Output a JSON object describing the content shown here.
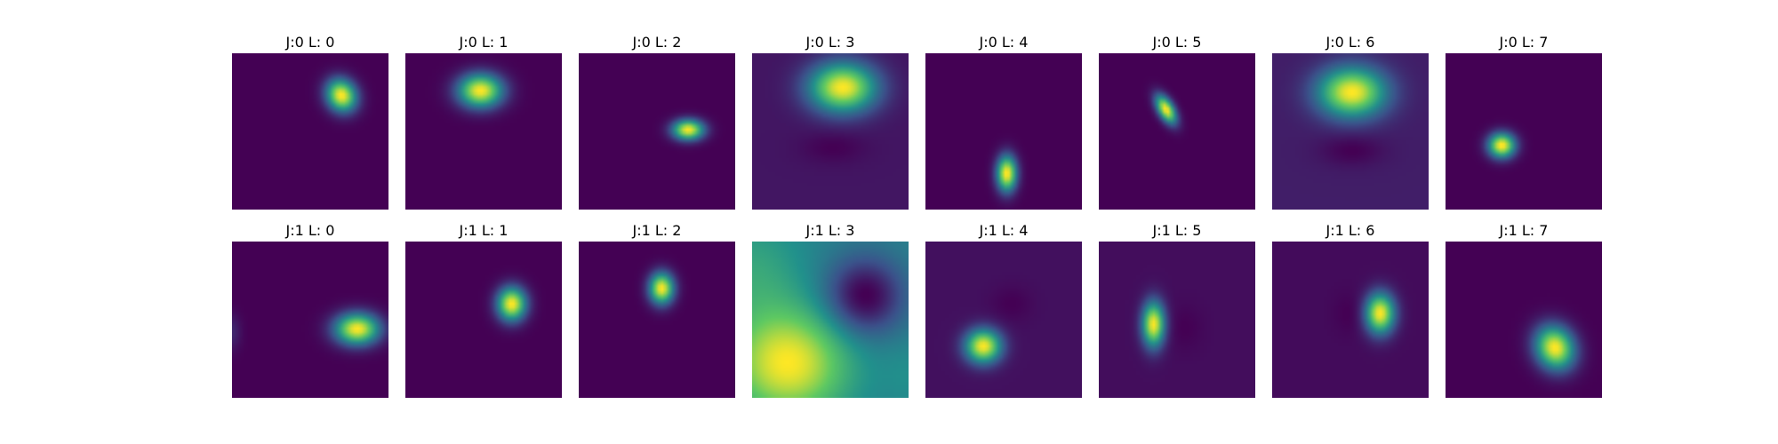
{
  "chart_data": {
    "type": "heatmap",
    "colormap": "viridis",
    "colormap_stops": [
      "#440154",
      "#3b528b",
      "#21918c",
      "#5ec962",
      "#fde725"
    ],
    "background": "#ffffff",
    "rows": 2,
    "cols": 8,
    "axes_visible": false,
    "panels": [
      {
        "title": "J:0 L: 0",
        "J": 0,
        "L": 0,
        "blobs": [
          {
            "cx": 0.7,
            "cy": 0.27,
            "sx": 0.065,
            "sy": 0.075,
            "rot": -30,
            "amp": 1.0
          }
        ],
        "base": 0.0
      },
      {
        "title": "J:0 L: 1",
        "J": 0,
        "L": 1,
        "blobs": [
          {
            "cx": 0.48,
            "cy": 0.24,
            "sx": 0.1,
            "sy": 0.075,
            "rot": 0,
            "amp": 1.0
          }
        ],
        "base": 0.0
      },
      {
        "title": "J:0 L: 2",
        "J": 0,
        "L": 2,
        "blobs": [
          {
            "cx": 0.7,
            "cy": 0.49,
            "sx": 0.07,
            "sy": 0.045,
            "rot": 0,
            "amp": 1.0
          }
        ],
        "base": 0.0
      },
      {
        "title": "J:0 L: 3",
        "J": 0,
        "L": 3,
        "blobs": [
          {
            "cx": 0.58,
            "cy": 0.22,
            "sx": 0.15,
            "sy": 0.11,
            "rot": 0,
            "amp": 1.0
          },
          {
            "cx": 0.52,
            "cy": 0.6,
            "sx": 0.14,
            "sy": 0.07,
            "rot": 0,
            "amp": -0.07
          }
        ],
        "base": 0.13
      },
      {
        "title": "J:0 L: 4",
        "J": 0,
        "L": 4,
        "blobs": [
          {
            "cx": 0.52,
            "cy": 0.77,
            "sx": 0.045,
            "sy": 0.08,
            "rot": 0,
            "amp": 1.0
          }
        ],
        "base": 0.0
      },
      {
        "title": "J:0 L: 5",
        "J": 0,
        "L": 5,
        "blobs": [
          {
            "cx": 0.43,
            "cy": 0.36,
            "sx": 0.035,
            "sy": 0.07,
            "rot": -30,
            "amp": 1.0
          }
        ],
        "base": 0.0
      },
      {
        "title": "J:0 L: 6",
        "J": 0,
        "L": 6,
        "blobs": [
          {
            "cx": 0.51,
            "cy": 0.25,
            "sx": 0.15,
            "sy": 0.11,
            "rot": 0,
            "amp": 1.0
          },
          {
            "cx": 0.51,
            "cy": 0.62,
            "sx": 0.14,
            "sy": 0.07,
            "rot": 0,
            "amp": -0.1
          }
        ],
        "base": 0.17
      },
      {
        "title": "J:0 L: 7",
        "J": 0,
        "L": 7,
        "blobs": [
          {
            "cx": 0.36,
            "cy": 0.59,
            "sx": 0.06,
            "sy": 0.055,
            "rot": 0,
            "amp": 1.0
          }
        ],
        "base": 0.0
      },
      {
        "title": "J:1 L: 0",
        "J": 1,
        "L": 0,
        "blobs": [
          {
            "cx": 0.8,
            "cy": 0.56,
            "sx": 0.1,
            "sy": 0.07,
            "rot": 0,
            "amp": 1.0
          },
          {
            "cx": 0.0,
            "cy": 0.58,
            "sx": 0.04,
            "sy": 0.08,
            "rot": 0,
            "amp": 0.12
          }
        ],
        "base": 0.03
      },
      {
        "title": "J:1 L: 1",
        "J": 1,
        "L": 1,
        "blobs": [
          {
            "cx": 0.68,
            "cy": 0.4,
            "sx": 0.065,
            "sy": 0.075,
            "rot": 0,
            "amp": 1.0
          }
        ],
        "base": 0.0
      },
      {
        "title": "J:1 L: 2",
        "J": 1,
        "L": 2,
        "blobs": [
          {
            "cx": 0.53,
            "cy": 0.3,
            "sx": 0.055,
            "sy": 0.07,
            "rot": 0,
            "amp": 1.0
          }
        ],
        "base": 0.0
      },
      {
        "title": "J:1 L: 3",
        "J": 1,
        "L": 3,
        "blobs": [
          {
            "cx": 0.23,
            "cy": 0.78,
            "sx": 0.26,
            "sy": 0.24,
            "rot": 0,
            "amp": 0.55
          },
          {
            "cx": 0.0,
            "cy": 0.2,
            "sx": 0.22,
            "sy": 0.25,
            "rot": 0,
            "amp": 0.15
          },
          {
            "cx": 0.72,
            "cy": 0.35,
            "sx": 0.17,
            "sy": 0.17,
            "rot": 0,
            "amp": -0.45
          },
          {
            "cx": 1.0,
            "cy": 0.85,
            "sx": 0.12,
            "sy": 0.15,
            "rot": 0,
            "amp": 0.05
          }
        ],
        "base": 0.45
      },
      {
        "title": "J:1 L: 4",
        "J": 1,
        "L": 4,
        "blobs": [
          {
            "cx": 0.37,
            "cy": 0.67,
            "sx": 0.08,
            "sy": 0.075,
            "rot": 0,
            "amp": 1.0
          },
          {
            "cx": 0.55,
            "cy": 0.4,
            "sx": 0.09,
            "sy": 0.08,
            "rot": 0,
            "amp": -0.05
          }
        ],
        "base": 0.05
      },
      {
        "title": "J:1 L: 5",
        "J": 1,
        "L": 5,
        "blobs": [
          {
            "cx": 0.35,
            "cy": 0.53,
            "sx": 0.05,
            "sy": 0.1,
            "rot": 0,
            "amp": 1.0
          },
          {
            "cx": 0.55,
            "cy": 0.55,
            "sx": 0.08,
            "sy": 0.1,
            "rot": 0,
            "amp": -0.04
          }
        ],
        "base": 0.05
      },
      {
        "title": "J:1 L: 6",
        "J": 1,
        "L": 6,
        "blobs": [
          {
            "cx": 0.69,
            "cy": 0.46,
            "sx": 0.065,
            "sy": 0.09,
            "rot": 0,
            "amp": 1.0
          },
          {
            "cx": 0.5,
            "cy": 0.46,
            "sx": 0.07,
            "sy": 0.09,
            "rot": 0,
            "amp": -0.04
          }
        ],
        "base": 0.04
      },
      {
        "title": "J:1 L: 7",
        "J": 1,
        "L": 7,
        "blobs": [
          {
            "cx": 0.7,
            "cy": 0.68,
            "sx": 0.085,
            "sy": 0.1,
            "rot": -25,
            "amp": 1.0
          }
        ],
        "base": 0.02
      }
    ]
  }
}
